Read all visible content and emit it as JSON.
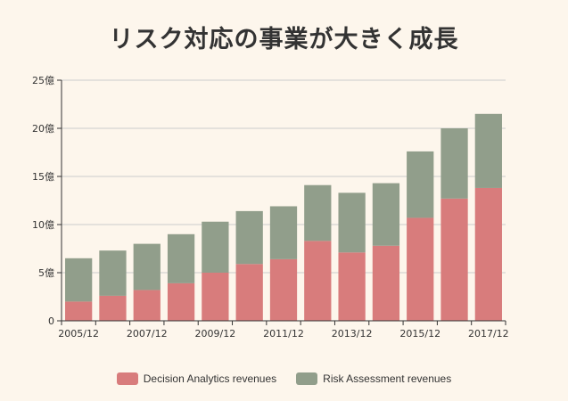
{
  "colors": {
    "background": "#fdf6ec",
    "decision_analytics": "#d87c7c",
    "risk_assessment": "#919e8b",
    "grid": "#cccccc",
    "axis": "#333333"
  },
  "chart_data": {
    "type": "bar",
    "stacked": true,
    "title": "リスク対応の事業が大きく成長",
    "xlabel": "",
    "ylabel": "",
    "categories": [
      "2005/12",
      "2006/12",
      "2007/12",
      "2008/12",
      "2009/12",
      "2010/12",
      "2011/12",
      "2012/12",
      "2013/12",
      "2014/12",
      "2015/12",
      "2016/12",
      "2017/12"
    ],
    "x_tick_labels_shown": [
      "2005/12",
      "2007/12",
      "2009/12",
      "2011/12",
      "2013/12",
      "2015/12",
      "2017/12"
    ],
    "y_ticks": [
      "0",
      "5億",
      "10億",
      "15億",
      "20億",
      "25億"
    ],
    "y_tick_values": [
      0,
      5,
      10,
      15,
      20,
      25
    ],
    "ylim": [
      0,
      25
    ],
    "grid": "horizontal",
    "legend_position": "bottom-center",
    "series": [
      {
        "name": "Decision Analytics revenues",
        "color": "#d87c7c",
        "values": [
          2.0,
          2.6,
          3.2,
          3.9,
          5.0,
          5.9,
          6.4,
          8.3,
          7.1,
          7.8,
          10.7,
          12.7,
          13.8
        ]
      },
      {
        "name": "Risk Assessment revenues",
        "color": "#919e8b",
        "values": [
          4.5,
          4.7,
          4.8,
          5.1,
          5.3,
          5.5,
          5.5,
          5.8,
          6.2,
          6.5,
          6.9,
          7.3,
          7.7
        ]
      }
    ]
  }
}
